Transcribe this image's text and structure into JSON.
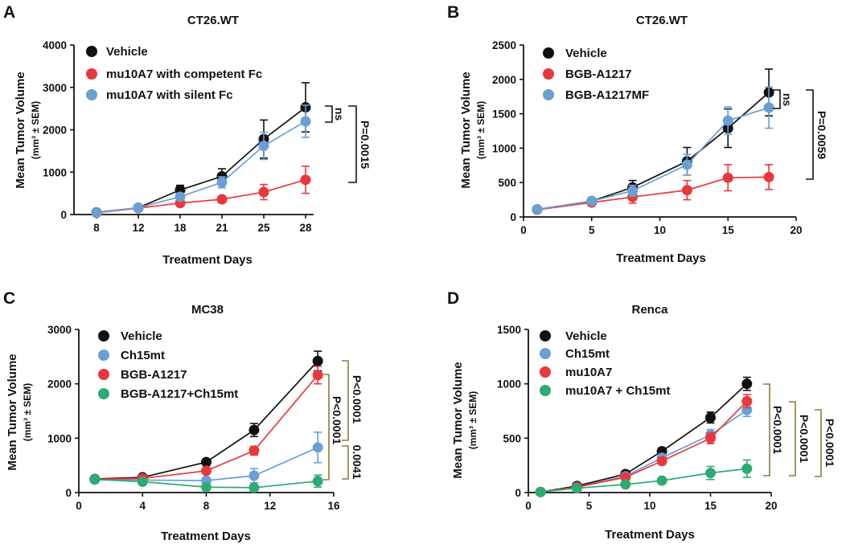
{
  "figure": {
    "colors": {
      "black": "#111111",
      "red": "#e8383d",
      "blue": "#6a9fd4",
      "green": "#2eab72",
      "bracket_black": "#111111",
      "bracket_olive": "#8a7d3a"
    }
  },
  "chart_data": [
    {
      "panel": "A",
      "type": "line",
      "title": "CT26.WT",
      "xlabel": "Treatment Days",
      "ylabel": "Mean Tumor Volume",
      "ylabel_sub": "(mm³ ± SEM)",
      "x_scale": "categorical",
      "categories": [
        "8",
        "12",
        "18",
        "21",
        "25",
        "28"
      ],
      "xticks": [
        "8",
        "12",
        "18",
        "21",
        "25",
        "28"
      ],
      "ylim": [
        0,
        4000
      ],
      "yticks": [
        0,
        1000,
        2000,
        3000,
        4000
      ],
      "series": [
        {
          "name": "Vehicle",
          "color": "black",
          "values": [
            50,
            160,
            580,
            900,
            1780,
            2530
          ],
          "errors": [
            20,
            30,
            110,
            180,
            450,
            580
          ]
        },
        {
          "name": "mu10A7 with competent Fc",
          "color": "red",
          "values": [
            40,
            150,
            270,
            360,
            530,
            820
          ],
          "errors": [
            15,
            25,
            50,
            70,
            180,
            320
          ]
        },
        {
          "name": "mu10A7 with silent Fc",
          "color": "blue",
          "values": [
            45,
            160,
            420,
            760,
            1620,
            2200
          ],
          "errors": [
            15,
            30,
            80,
            130,
            320,
            380
          ]
        }
      ],
      "annotations": [
        {
          "text": "ns",
          "bracket_color": "bracket_black"
        },
        {
          "text": "P=0.0015",
          "bracket_color": "bracket_black"
        }
      ]
    },
    {
      "panel": "B",
      "type": "line",
      "title": "CT26.WT",
      "xlabel": "Treatment Days",
      "ylabel": "Mean Tumor Volume",
      "ylabel_sub": "(mm³ ± SEM)",
      "x_scale": "linear",
      "xlim": [
        0,
        20
      ],
      "xticks": [
        0,
        5,
        10,
        15,
        20
      ],
      "ylim": [
        0,
        2500
      ],
      "yticks": [
        0,
        500,
        1000,
        1500,
        2000,
        2500
      ],
      "series": [
        {
          "name": "Vehicle",
          "color": "black",
          "x": [
            1,
            5,
            8,
            12,
            15,
            18
          ],
          "values": [
            110,
            230,
            430,
            810,
            1290,
            1810
          ],
          "errors": [
            15,
            30,
            100,
            200,
            280,
            340
          ]
        },
        {
          "name": "BGB-A1217",
          "color": "red",
          "x": [
            1,
            5,
            8,
            12,
            15,
            18
          ],
          "values": [
            105,
            210,
            290,
            390,
            570,
            580
          ],
          "errors": [
            15,
            25,
            90,
            140,
            190,
            180
          ]
        },
        {
          "name": "BGB-A1217MF",
          "color": "blue",
          "x": [
            1,
            5,
            8,
            12,
            15,
            18
          ],
          "values": [
            110,
            230,
            380,
            760,
            1400,
            1590
          ],
          "errors": [
            15,
            30,
            80,
            150,
            200,
            300
          ]
        }
      ],
      "annotations": [
        {
          "text": "ns",
          "bracket_color": "bracket_black"
        },
        {
          "text": "P=0.0059",
          "bracket_color": "bracket_black"
        }
      ]
    },
    {
      "panel": "C",
      "type": "line",
      "title": "MC38",
      "xlabel": "Treatment Days",
      "ylabel": "Mean Tumor Volume",
      "ylabel_sub": "(mm³ ± SEM)",
      "x_scale": "linear",
      "xlim": [
        0,
        16
      ],
      "xticks": [
        0,
        4,
        8,
        12,
        16
      ],
      "ylim": [
        0,
        3000
      ],
      "yticks": [
        0,
        1000,
        2000,
        3000
      ],
      "series": [
        {
          "name": "Vehicle",
          "color": "black",
          "x": [
            1,
            4,
            8,
            11,
            15
          ],
          "values": [
            250,
            280,
            560,
            1150,
            2420
          ],
          "errors": [
            20,
            30,
            50,
            120,
            180
          ]
        },
        {
          "name": "Ch15mt",
          "color": "blue",
          "x": [
            1,
            4,
            8,
            11,
            15
          ],
          "values": [
            240,
            230,
            220,
            310,
            830
          ],
          "errors": [
            20,
            30,
            50,
            130,
            280
          ]
        },
        {
          "name": "BGB-A1217",
          "color": "red",
          "x": [
            1,
            4,
            8,
            11,
            15
          ],
          "values": [
            245,
            260,
            400,
            770,
            2160
          ],
          "errors": [
            20,
            30,
            50,
            80,
            160
          ]
        },
        {
          "name": "BGB-A1217+Ch15mt",
          "color": "green",
          "x": [
            1,
            4,
            8,
            11,
            15
          ],
          "values": [
            240,
            200,
            100,
            90,
            210
          ],
          "errors": [
            20,
            30,
            30,
            40,
            110
          ]
        }
      ],
      "annotations": [
        {
          "text": "P<0.0001",
          "bracket_color": "bracket_olive"
        },
        {
          "text": "P<0.0001",
          "bracket_color": "bracket_olive"
        },
        {
          "text": "0.0041",
          "bracket_color": "bracket_olive"
        }
      ]
    },
    {
      "panel": "D",
      "type": "line",
      "title": "Renca",
      "xlabel": "Treatment Days",
      "ylabel": "Mean Tumor Volume",
      "ylabel_sub": "(mm³ ± SEM)",
      "x_scale": "linear",
      "xlim": [
        0,
        20
      ],
      "xticks": [
        0,
        5,
        10,
        15,
        20
      ],
      "ylim": [
        0,
        1500
      ],
      "yticks": [
        0,
        500,
        1000,
        1500
      ],
      "series": [
        {
          "name": "Vehicle",
          "color": "black",
          "x": [
            1,
            4,
            8,
            11,
            15,
            18
          ],
          "values": [
            5,
            60,
            170,
            380,
            690,
            1000
          ],
          "errors": [
            3,
            10,
            20,
            30,
            50,
            60
          ]
        },
        {
          "name": "Ch15mt",
          "color": "blue",
          "x": [
            1,
            4,
            8,
            11,
            15,
            18
          ],
          "values": [
            5,
            50,
            150,
            320,
            530,
            760
          ],
          "errors": [
            3,
            10,
            20,
            30,
            50,
            60
          ]
        },
        {
          "name": "mu10A7",
          "color": "red",
          "x": [
            1,
            4,
            8,
            11,
            15,
            18
          ],
          "values": [
            5,
            50,
            140,
            290,
            500,
            840
          ],
          "errors": [
            3,
            10,
            20,
            30,
            50,
            60
          ]
        },
        {
          "name": "mu10A7 + Ch15mt",
          "color": "green",
          "x": [
            1,
            4,
            8,
            11,
            15,
            18
          ],
          "values": [
            5,
            40,
            75,
            110,
            180,
            220
          ],
          "errors": [
            3,
            10,
            15,
            20,
            60,
            80
          ]
        }
      ],
      "annotations": [
        {
          "text": "P<0.0001",
          "bracket_color": "bracket_olive"
        },
        {
          "text": "P<0.0001",
          "bracket_color": "bracket_olive"
        },
        {
          "text": "P<0.0001",
          "bracket_color": "bracket_olive"
        }
      ]
    }
  ]
}
